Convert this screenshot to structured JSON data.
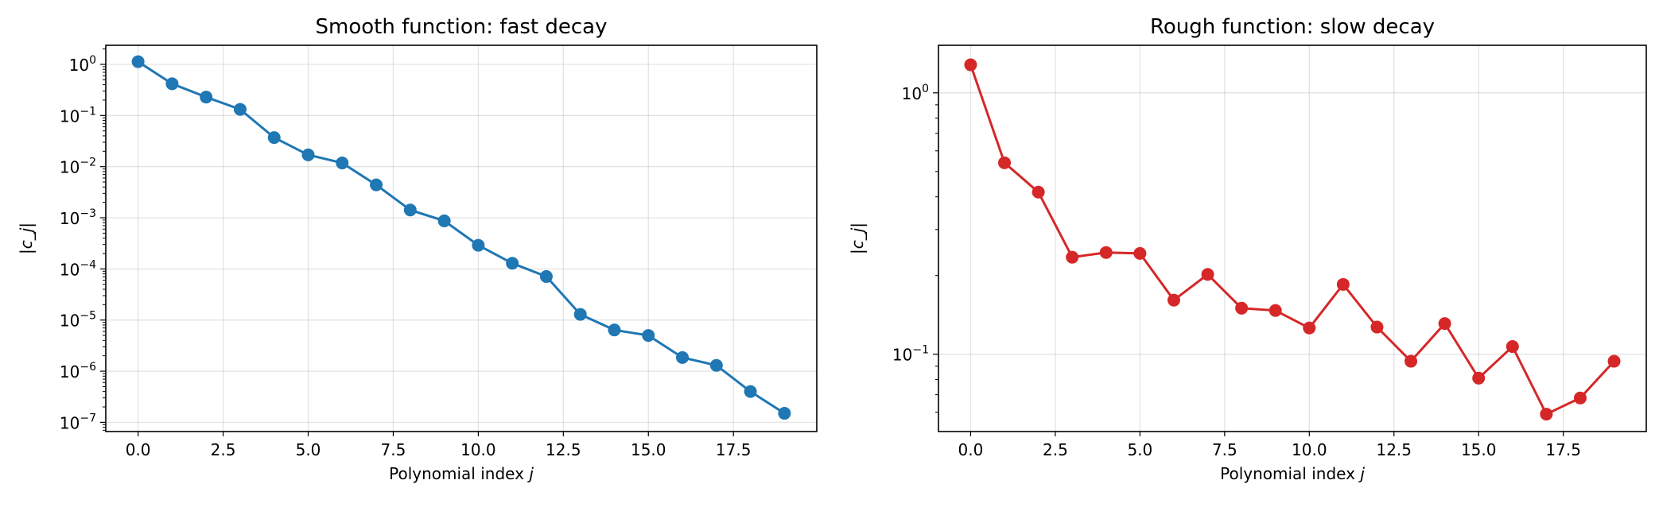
{
  "chart_data": [
    {
      "type": "line",
      "title": "Smooth function: fast decay",
      "xlabel": "Polynomial index",
      "xlabel_var": "j",
      "ylabel": "|c_j|",
      "yscale": "log",
      "xlim": [
        -0.95,
        19.95
      ],
      "ylim": [
        6.6e-08,
        2.36
      ],
      "grid": true,
      "color": "#1f77b4",
      "x": [
        0,
        1,
        2,
        3,
        4,
        5,
        6,
        7,
        8,
        9,
        10,
        11,
        12,
        13,
        14,
        15,
        16,
        17,
        18,
        19
      ],
      "y": [
        1.13,
        0.417,
        0.229,
        0.132,
        0.037,
        0.017,
        0.0118,
        0.0044,
        0.00142,
        0.00087,
        0.00029,
        0.000129,
        7.1e-05,
        1.29e-05,
        6.4e-06,
        5e-06,
        1.85e-06,
        1.3e-06,
        4e-07,
        1.5e-07
      ],
      "xticks": [
        0,
        2.5,
        5,
        7.5,
        10,
        12.5,
        15,
        17.5
      ],
      "xtick_labels": [
        "0.0",
        "2.5",
        "5.0",
        "7.5",
        "10.0",
        "12.5",
        "15.0",
        "17.5"
      ],
      "yticks": [
        1,
        0.1,
        0.01,
        0.001,
        0.0001,
        1e-05,
        1e-06,
        1e-07
      ],
      "ytick_labels": [
        {
          "base": "10",
          "exp": "0"
        },
        {
          "base": "10",
          "exp": "−1"
        },
        {
          "base": "10",
          "exp": "−2"
        },
        {
          "base": "10",
          "exp": "−3"
        },
        {
          "base": "10",
          "exp": "−4"
        },
        {
          "base": "10",
          "exp": "−5"
        },
        {
          "base": "10",
          "exp": "−6"
        },
        {
          "base": "10",
          "exp": "−7"
        }
      ]
    },
    {
      "type": "line",
      "title": "Rough function: slow decay",
      "xlabel": "Polynomial index",
      "xlabel_var": "j",
      "ylabel": "|c_j|",
      "yscale": "log",
      "xlim": [
        -0.95,
        19.95
      ],
      "ylim": [
        0.0506,
        1.52
      ],
      "grid": true,
      "color": "#d62728",
      "x": [
        0,
        1,
        2,
        3,
        4,
        5,
        6,
        7,
        8,
        9,
        10,
        11,
        12,
        13,
        14,
        15,
        16,
        17,
        18,
        19
      ],
      "y": [
        1.28,
        0.54,
        0.417,
        0.235,
        0.245,
        0.243,
        0.161,
        0.202,
        0.15,
        0.147,
        0.126,
        0.185,
        0.127,
        0.094,
        0.131,
        0.081,
        0.107,
        0.059,
        0.068,
        0.094
      ],
      "xticks": [
        0,
        2.5,
        5,
        7.5,
        10,
        12.5,
        15,
        17.5
      ],
      "xtick_labels": [
        "0.0",
        "2.5",
        "5.0",
        "7.5",
        "10.0",
        "12.5",
        "15.0",
        "17.5"
      ],
      "yticks": [
        1,
        0.1
      ],
      "ytick_labels": [
        {
          "base": "10",
          "exp": "0"
        },
        {
          "base": "10",
          "exp": "−1"
        }
      ]
    }
  ]
}
